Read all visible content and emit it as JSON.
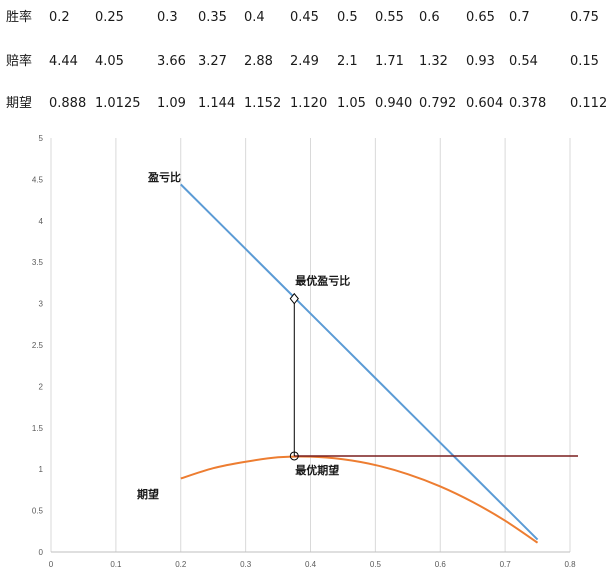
{
  "table": {
    "rows": [
      {
        "label": "胜率",
        "values": [
          "0.2",
          "0.25",
          "0.3",
          "0.35",
          "0.4",
          "0.45",
          "0.5",
          "0.55",
          "0.6",
          "0.65",
          "0.7",
          "0.75"
        ]
      },
      {
        "label": "赔率",
        "values": [
          "4.44",
          "4.05",
          "3.66",
          "3.27",
          "2.88",
          "2.49",
          "2.1",
          "1.71",
          "1.32",
          "0.93",
          "0.54",
          "0.15"
        ]
      },
      {
        "label": "期望",
        "values": [
          "0.888",
          "1.0125",
          "1.09",
          "1.144",
          "1.152",
          "1.120",
          "1.05",
          "0.940",
          "0.792",
          "0.604",
          "0.378",
          "0.112"
        ]
      }
    ]
  },
  "chart_data": {
    "type": "line",
    "xlim": [
      0,
      0.8
    ],
    "ylim": [
      0,
      5
    ],
    "x_ticks": [
      "0",
      "0.1",
      "0.2",
      "0.3",
      "0.4",
      "0.5",
      "0.6",
      "0.7",
      "0.8"
    ],
    "y_ticks": [
      "0",
      "0.5",
      "1",
      "1.5",
      "2",
      "2.5",
      "3",
      "3.5",
      "4",
      "4.5",
      "5"
    ],
    "grid": "vertical",
    "series": [
      {
        "name": "盈亏比",
        "color": "#5b9bd5",
        "x": [
          0.2,
          0.25,
          0.3,
          0.35,
          0.4,
          0.45,
          0.5,
          0.55,
          0.6,
          0.65,
          0.7,
          0.75
        ],
        "y": [
          4.44,
          4.05,
          3.66,
          3.27,
          2.88,
          2.49,
          2.1,
          1.71,
          1.32,
          0.93,
          0.54,
          0.15
        ]
      },
      {
        "name": "期望",
        "color": "#ed7d31",
        "x": [
          0.2,
          0.25,
          0.3,
          0.35,
          0.4,
          0.45,
          0.5,
          0.55,
          0.6,
          0.65,
          0.7,
          0.75
        ],
        "y": [
          0.888,
          1.0125,
          1.09,
          1.144,
          1.152,
          1.12,
          1.05,
          0.94,
          0.792,
          0.604,
          0.378,
          0.112
        ]
      }
    ],
    "annotations": {
      "optimal_ratio_label": "最优盈亏比",
      "optimal_expectation_label": "最优期望",
      "optimal_x": 0.375,
      "optimal_ratio_y": 3.06,
      "optimal_expectation_y": 1.16,
      "horizontal_line_color": "#7a1f1f"
    }
  }
}
